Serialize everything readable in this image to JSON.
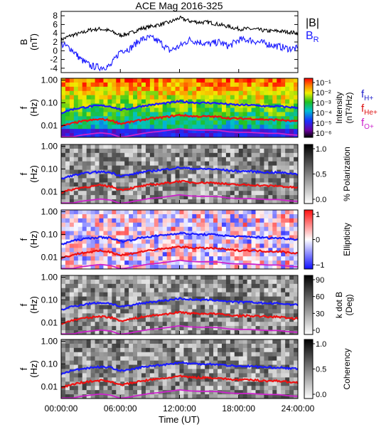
{
  "title": "ACE Mag 2016-325",
  "x_axis": {
    "label": "Time (UT)",
    "ticks": [
      "00:00:00",
      "06:00:00",
      "12:00:00",
      "18:00:00",
      "24:00:00"
    ],
    "range_hours": [
      0,
      24
    ]
  },
  "field_panel": {
    "ylabel_line1": "B",
    "ylabel_line2": "(nT)",
    "yticks": [
      "8",
      "6",
      "4",
      "2",
      "0",
      "-2",
      "-4"
    ],
    "ylim": [
      -5,
      9
    ],
    "legend": [
      {
        "label": "|B|",
        "color": "#000000"
      },
      {
        "label": "B",
        "sub": "R",
        "color": "#1a1aff"
      }
    ]
  },
  "spectral_panels": {
    "ylabel_line1": "f",
    "ylabel_line2": "(Hz)",
    "yticks": [
      "1.00",
      "0.10",
      "0.01"
    ],
    "ylim_hz": [
      0.003,
      1.2
    ],
    "scale": "log"
  },
  "panels": [
    {
      "id": "intensity",
      "colorbar": "rainbow",
      "label_line1": "Intensity",
      "label_line2": "(nT²/Hz)",
      "cbar_ticks": [
        "10⁻¹",
        "10⁻²",
        "10⁻³",
        "10⁻⁴",
        "10⁻⁵",
        "10⁻⁶"
      ]
    },
    {
      "id": "polarization",
      "colorbar": "gray",
      "label_line1": "% Polarization",
      "label_line2": "",
      "cbar_ticks": [
        "1.0",
        "0.5",
        "0.0"
      ]
    },
    {
      "id": "ellipticity",
      "colorbar": "bwr",
      "label_line1": "Ellipticity",
      "label_line2": "",
      "cbar_ticks": [
        "1",
        "0",
        "−1"
      ]
    },
    {
      "id": "kdotb",
      "colorbar": "gray",
      "label_line1": "k dot B",
      "label_line2": "(Deg)",
      "cbar_ticks": [
        "90",
        "60",
        "30",
        "0"
      ]
    },
    {
      "id": "coherency",
      "colorbar": "gray",
      "label_line1": "Coherency",
      "label_line2": "",
      "cbar_ticks": [
        "1.0",
        "0.5",
        "0.0"
      ]
    }
  ],
  "gyro_legend": [
    {
      "label": "f",
      "sub": "H+",
      "color": "#2222cc"
    },
    {
      "label": "f",
      "sub": "He+",
      "color": "#dd1111"
    },
    {
      "label": "f",
      "sub": "O+",
      "color": "#cc22cc"
    }
  ],
  "chart_data": {
    "type": "line",
    "title": "ACE Mag 2016-325",
    "xlabel": "Time (UT)",
    "ylabel": "B (nT)",
    "ylim": [
      -5,
      9
    ],
    "x_hours": [
      0,
      1,
      2,
      3,
      4,
      5,
      6,
      7,
      8,
      9,
      10,
      11,
      12,
      13,
      14,
      15,
      16,
      17,
      18,
      19,
      20,
      21,
      22,
      23,
      24
    ],
    "series": [
      {
        "name": "|B|",
        "color": "#000000",
        "values": [
          2.5,
          3.5,
          4.0,
          4.8,
          5.0,
          4.5,
          3.5,
          4.0,
          5.0,
          5.5,
          6.0,
          6.5,
          7.5,
          6.8,
          6.5,
          6.5,
          6.0,
          5.5,
          5.0,
          5.0,
          4.8,
          4.5,
          4.5,
          4.3,
          4.0
        ]
      },
      {
        "name": "B",
        "sub": "R",
        "color": "#1a1aff",
        "values": [
          1.5,
          0.5,
          -2.0,
          -3.5,
          -3.8,
          -3.5,
          0.0,
          0.5,
          2.5,
          3.0,
          2.0,
          0.0,
          1.0,
          2.5,
          2.0,
          1.5,
          2.0,
          1.0,
          2.5,
          2.5,
          2.0,
          1.5,
          1.0,
          0.5,
          0.5
        ]
      }
    ],
    "gyrofrequencies_hz": {
      "x_hours": [
        0,
        1,
        2,
        3,
        4,
        5,
        6,
        7,
        8,
        9,
        10,
        11,
        12,
        13,
        14,
        15,
        16,
        17,
        18,
        19,
        20,
        21,
        22,
        23,
        24
      ],
      "H+": [
        0.035,
        0.05,
        0.06,
        0.07,
        0.075,
        0.07,
        0.05,
        0.055,
        0.07,
        0.08,
        0.09,
        0.1,
        0.115,
        0.105,
        0.1,
        0.1,
        0.095,
        0.085,
        0.08,
        0.08,
        0.075,
        0.07,
        0.07,
        0.065,
        0.06
      ],
      "He+": [
        0.009,
        0.012,
        0.015,
        0.017,
        0.019,
        0.017,
        0.012,
        0.014,
        0.017,
        0.02,
        0.022,
        0.025,
        0.029,
        0.026,
        0.025,
        0.025,
        0.024,
        0.021,
        0.02,
        0.02,
        0.019,
        0.018,
        0.018,
        0.016,
        0.015
      ]
    }
  }
}
